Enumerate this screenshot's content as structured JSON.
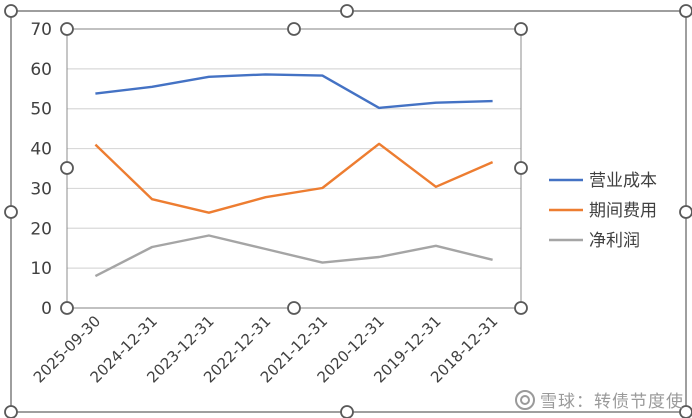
{
  "watermark": {
    "text": "雪球：转债节度使"
  },
  "colors": {
    "series": [
      "#4472C4",
      "#ED7D31",
      "#A5A5A5"
    ],
    "grid": "#D9D9D9",
    "frame": "#7F7F7F",
    "handle": "#595959"
  },
  "chart_data": {
    "type": "line",
    "title": "",
    "xlabel": "",
    "ylabel": "",
    "ylim": [
      0,
      70
    ],
    "yticks": [
      0,
      10,
      20,
      30,
      40,
      50,
      60,
      70
    ],
    "grid": true,
    "legend_position": "right",
    "categories": [
      "2025-09-30",
      "2024-12-31",
      "2023-12-31",
      "2022-12-31",
      "2021-12-31",
      "2020-12-31",
      "2019-12-31",
      "2018-12-31"
    ],
    "series": [
      {
        "name": "营业成本",
        "values": [
          53.8,
          55.5,
          58.0,
          58.6,
          58.3,
          50.2,
          51.5,
          51.9
        ]
      },
      {
        "name": "期间费用",
        "values": [
          41.0,
          27.3,
          23.9,
          27.8,
          30.1,
          41.2,
          30.4,
          36.6
        ]
      },
      {
        "name": "净利润",
        "values": [
          8.0,
          15.3,
          18.2,
          14.8,
          11.4,
          12.8,
          15.6,
          12.1
        ]
      }
    ]
  }
}
